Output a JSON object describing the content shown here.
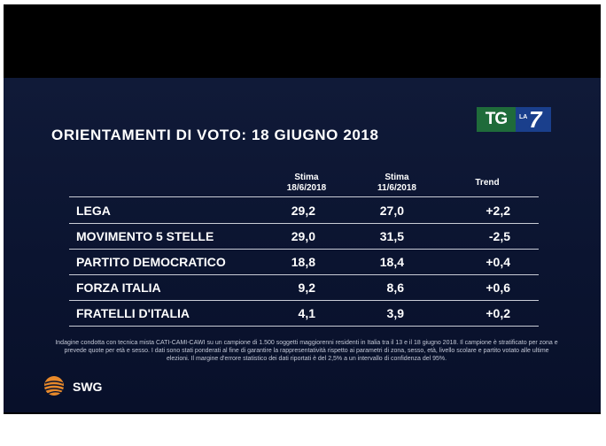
{
  "title": "ORIENTAMENTI DI VOTO: 18 GIUGNO 2018",
  "logo": {
    "tg": "TG",
    "la": "LA",
    "seven": "7"
  },
  "columns": [
    {
      "line1": "Stima",
      "line2": "18/6/2018"
    },
    {
      "line1": "Stima",
      "line2": "11/6/2018"
    },
    {
      "line1": "Trend",
      "line2": ""
    }
  ],
  "rows": [
    {
      "party": "LEGA",
      "current": "29,2",
      "previous": "27,0",
      "trend": "+2,2"
    },
    {
      "party": "MOVIMENTO 5 STELLE",
      "current": "29,0",
      "previous": "31,5",
      "trend": "-2,5"
    },
    {
      "party": "PARTITO DEMOCRATICO",
      "current": "18,8",
      "previous": "18,4",
      "trend": "+0,4"
    },
    {
      "party": "FORZA ITALIA",
      "current": "9,2",
      "previous": "8,6",
      "trend": "+0,6"
    },
    {
      "party": "FRATELLI D'ITALIA",
      "current": "4,1",
      "previous": "3,9",
      "trend": "+0,2"
    }
  ],
  "note": "Indagine condotta con tecnica mista CATI-CAMI-CAWI su un campione di 1.500 soggetti maggiorenni residenti in Italia tra il 13 e il 18 giugno 2018. Il campione è stratificato per zona e prevede quote per età e sesso. I dati sono stati ponderati al fine di garantire la rappresentatività rispetto ai parametri di zona, sesso, età, livello scolare e partito votato alle ultime elezioni. Il margine d'errore statistico dei dati riportati è del 2,5% a un intervallo di confidenza del 95%.",
  "footer": {
    "brand": "SWG"
  },
  "colors": {
    "background": "#0b1430",
    "tg_green": "#1f6b3a",
    "la7_blue": "#1a3f8c",
    "swg_orange": "#e8892a"
  }
}
